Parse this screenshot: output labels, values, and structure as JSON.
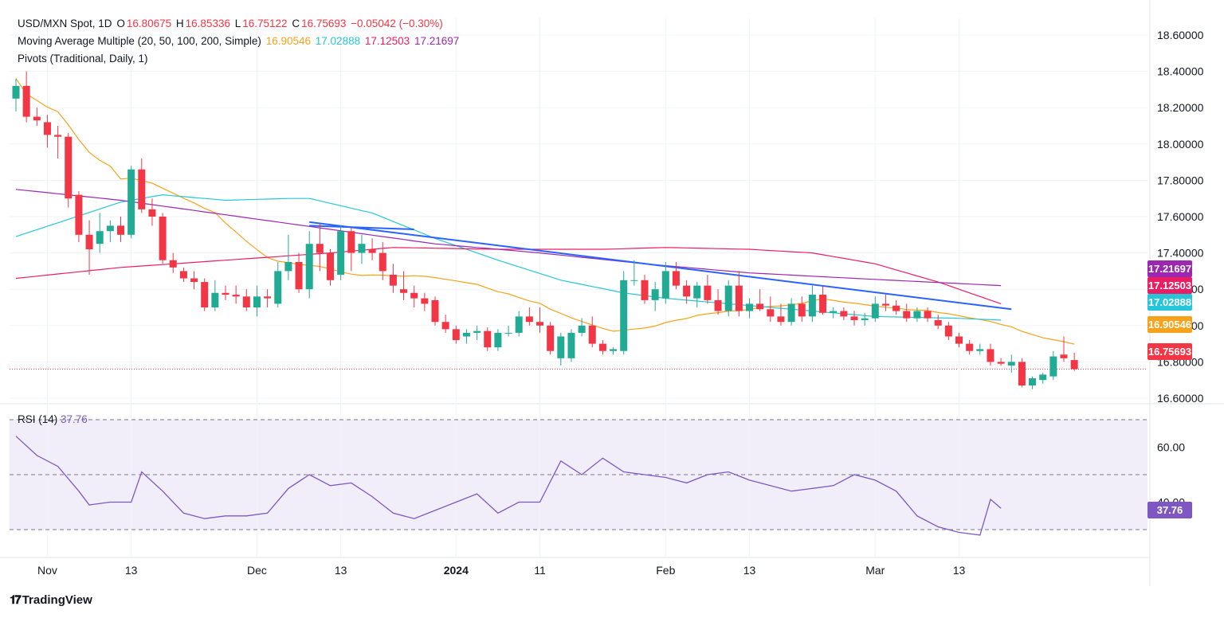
{
  "header": {
    "symbol": "USD/MXN Spot, 1D",
    "open_label": "O",
    "open": "16.80675",
    "high_label": "H",
    "high": "16.85336",
    "low_label": "L",
    "low": "16.75122",
    "close_label": "C",
    "close": "16.75693",
    "change": "−0.05042 (−0.30%)",
    "ma_label": "Moving Average Multiple (20, 50, 100, 200, Simple)",
    "ma20": "16.90546",
    "ma50": "17.02888",
    "ma100": "17.12503",
    "ma200": "17.21697",
    "pivots_label": "Pivots (Traditional, Daily, 1)"
  },
  "rsi": {
    "label": "RSI (14)",
    "value": "37.76"
  },
  "price_tags": {
    "ma200": "17.21697",
    "ma100": "17.12503",
    "ma50": "17.02888",
    "ma20": "16.90546",
    "last": "16.75693"
  },
  "brand": {
    "name": "TradingView"
  },
  "colors": {
    "up": "#22ab94",
    "down": "#f23645",
    "ma20": "#f7a21b",
    "ma50": "#26c6da",
    "ma100": "#e91e63",
    "ma200": "#9c27b0",
    "trendline": "#2962ff",
    "rsi": "#7e57c2"
  },
  "chart_data": [
    {
      "type": "candlestick",
      "title": "USD/MXN Spot, 1D",
      "y_ticks": [
        "16.60000",
        "16.80000",
        "17.00000",
        "17.20000",
        "17.40000",
        "17.60000",
        "17.80000",
        "18.00000",
        "18.20000",
        "18.40000",
        "18.60000"
      ],
      "x_labels": [
        {
          "label": "Nov",
          "index": 3
        },
        {
          "label": "13",
          "index": 11
        },
        {
          "label": "Dec",
          "index": 23
        },
        {
          "label": "13",
          "index": 31
        },
        {
          "label": "2024",
          "index": 42
        },
        {
          "label": "11",
          "index": 50
        },
        {
          "label": "Feb",
          "index": 62
        },
        {
          "label": "13",
          "index": 70
        },
        {
          "label": "Mar",
          "index": 82
        },
        {
          "label": "13",
          "index": 90
        }
      ],
      "ylim": [
        16.49,
        18.64
      ],
      "candles": [
        [
          18.25,
          18.36,
          18.18,
          18.32
        ],
        [
          18.32,
          18.4,
          18.12,
          18.15
        ],
        [
          18.15,
          18.2,
          18.1,
          18.13
        ],
        [
          18.12,
          18.16,
          17.98,
          18.05
        ],
        [
          18.05,
          18.1,
          17.92,
          18.04
        ],
        [
          18.04,
          18.06,
          17.65,
          17.7
        ],
        [
          17.72,
          17.74,
          17.46,
          17.5
        ],
        [
          17.5,
          17.58,
          17.28,
          17.42
        ],
        [
          17.45,
          17.62,
          17.4,
          17.52
        ],
        [
          17.52,
          17.58,
          17.46,
          17.55
        ],
        [
          17.55,
          17.6,
          17.46,
          17.5
        ],
        [
          17.5,
          17.88,
          17.48,
          17.86
        ],
        [
          17.86,
          17.92,
          17.62,
          17.64
        ],
        [
          17.64,
          17.7,
          17.55,
          17.6
        ],
        [
          17.6,
          17.62,
          17.34,
          17.36
        ],
        [
          17.36,
          17.4,
          17.29,
          17.32
        ],
        [
          17.3,
          17.32,
          17.24,
          17.26
        ],
        [
          17.26,
          17.3,
          17.2,
          17.24
        ],
        [
          17.24,
          17.26,
          17.08,
          17.1
        ],
        [
          17.1,
          17.25,
          17.08,
          17.18
        ],
        [
          17.18,
          17.22,
          17.14,
          17.17
        ],
        [
          17.17,
          17.22,
          17.12,
          17.16
        ],
        [
          17.16,
          17.2,
          17.08,
          17.1
        ],
        [
          17.1,
          17.22,
          17.05,
          17.16
        ],
        [
          17.16,
          17.2,
          17.1,
          17.15
        ],
        [
          17.12,
          17.35,
          17.1,
          17.3
        ],
        [
          17.3,
          17.5,
          17.25,
          17.35
        ],
        [
          17.35,
          17.4,
          17.18,
          17.2
        ],
        [
          17.2,
          17.52,
          17.15,
          17.45
        ],
        [
          17.45,
          17.56,
          17.3,
          17.4
        ],
        [
          17.4,
          17.42,
          17.22,
          17.25
        ],
        [
          17.28,
          17.55,
          17.25,
          17.52
        ],
        [
          17.52,
          17.54,
          17.3,
          17.4
        ],
        [
          17.4,
          17.5,
          17.34,
          17.45
        ],
        [
          17.42,
          17.48,
          17.36,
          17.4
        ],
        [
          17.4,
          17.46,
          17.25,
          17.3
        ],
        [
          17.28,
          17.34,
          17.18,
          17.22
        ],
        [
          17.2,
          17.3,
          17.14,
          17.18
        ],
        [
          17.18,
          17.22,
          17.1,
          17.15
        ],
        [
          17.15,
          17.18,
          17.08,
          17.12
        ],
        [
          17.14,
          17.16,
          17.0,
          17.02
        ],
        [
          17.02,
          17.06,
          16.96,
          16.98
        ],
        [
          16.98,
          17.0,
          16.9,
          16.92
        ],
        [
          16.94,
          16.98,
          16.9,
          16.96
        ],
        [
          16.96,
          17.0,
          16.92,
          16.97
        ],
        [
          16.97,
          16.99,
          16.86,
          16.88
        ],
        [
          16.88,
          16.98,
          16.86,
          16.96
        ],
        [
          16.96,
          17.0,
          16.94,
          16.96
        ],
        [
          16.96,
          17.08,
          16.94,
          17.05
        ],
        [
          17.05,
          17.1,
          17.0,
          17.02
        ],
        [
          17.02,
          17.1,
          16.96,
          17.0
        ],
        [
          17.0,
          17.02,
          16.84,
          16.86
        ],
        [
          16.82,
          16.96,
          16.78,
          16.94
        ],
        [
          16.82,
          16.98,
          16.8,
          16.96
        ],
        [
          16.96,
          17.04,
          16.94,
          17.0
        ],
        [
          17.0,
          17.05,
          16.88,
          16.9
        ],
        [
          16.9,
          16.92,
          16.84,
          16.86
        ],
        [
          16.86,
          16.88,
          16.84,
          16.87
        ],
        [
          16.86,
          17.3,
          16.84,
          17.25
        ],
        [
          17.25,
          17.36,
          17.22,
          17.25
        ],
        [
          17.25,
          17.28,
          17.12,
          17.14
        ],
        [
          17.14,
          17.24,
          17.08,
          17.2
        ],
        [
          17.15,
          17.35,
          17.12,
          17.3
        ],
        [
          17.3,
          17.35,
          17.2,
          17.22
        ],
        [
          17.22,
          17.25,
          17.12,
          17.16
        ],
        [
          17.15,
          17.24,
          17.1,
          17.22
        ],
        [
          17.22,
          17.28,
          17.12,
          17.14
        ],
        [
          17.14,
          17.2,
          17.06,
          17.08
        ],
        [
          17.08,
          17.25,
          17.05,
          17.22
        ],
        [
          17.22,
          17.3,
          17.05,
          17.08
        ],
        [
          17.08,
          17.15,
          17.04,
          17.12
        ],
        [
          17.12,
          17.2,
          17.08,
          17.09
        ],
        [
          17.09,
          17.16,
          17.02,
          17.05
        ],
        [
          17.05,
          17.12,
          17.0,
          17.02
        ],
        [
          17.02,
          17.15,
          17.0,
          17.12
        ],
        [
          17.12,
          17.16,
          17.02,
          17.05
        ],
        [
          17.05,
          17.22,
          17.02,
          17.17
        ],
        [
          17.17,
          17.22,
          17.06,
          17.07
        ],
        [
          17.07,
          17.1,
          17.04,
          17.08
        ],
        [
          17.08,
          17.1,
          17.03,
          17.05
        ],
        [
          17.05,
          17.08,
          17.0,
          17.03
        ],
        [
          17.03,
          17.07,
          17.0,
          17.04
        ],
        [
          17.04,
          17.16,
          17.02,
          17.12
        ],
        [
          17.12,
          17.17,
          17.08,
          17.11
        ],
        [
          17.11,
          17.14,
          17.06,
          17.08
        ],
        [
          17.08,
          17.12,
          17.02,
          17.04
        ],
        [
          17.04,
          17.1,
          17.02,
          17.08
        ],
        [
          17.08,
          17.1,
          17.02,
          17.04
        ],
        [
          17.03,
          17.06,
          16.98,
          17.0
        ],
        [
          17.0,
          17.02,
          16.92,
          16.94
        ],
        [
          16.94,
          16.96,
          16.88,
          16.9
        ],
        [
          16.9,
          16.92,
          16.84,
          16.86
        ],
        [
          16.86,
          16.9,
          16.84,
          16.87
        ],
        [
          16.87,
          16.9,
          16.78,
          16.8
        ],
        [
          16.8,
          16.82,
          16.78,
          16.79
        ],
        [
          16.78,
          16.84,
          16.74,
          16.8
        ],
        [
          16.8,
          16.82,
          16.66,
          16.67
        ],
        [
          16.67,
          16.72,
          16.65,
          16.71
        ],
        [
          16.7,
          16.74,
          16.68,
          16.73
        ],
        [
          16.72,
          16.86,
          16.7,
          16.83
        ],
        [
          16.84,
          16.94,
          16.8,
          16.82
        ],
        [
          16.81,
          16.85,
          16.75,
          16.76
        ]
      ]
    },
    {
      "type": "line",
      "title": "RSI (14)",
      "y_ticks": [
        "60.00",
        "40.00"
      ],
      "ylim": [
        23,
        73
      ],
      "reference_lines": [
        70,
        50,
        30
      ],
      "x": [
        0,
        2,
        4,
        6,
        7,
        9,
        11,
        12,
        14,
        16,
        18,
        20,
        22,
        24,
        26,
        28,
        30,
        32,
        34,
        36,
        38,
        40,
        42,
        44,
        46,
        48,
        50,
        52,
        54,
        56,
        58,
        60,
        62,
        64,
        66,
        68,
        70,
        72,
        74,
        76,
        78,
        80,
        82,
        84,
        86,
        88,
        90,
        92,
        93,
        94
      ],
      "values": [
        64,
        57,
        53,
        44,
        39,
        40,
        40,
        51,
        44,
        36,
        34,
        35,
        35,
        36,
        45,
        50,
        46,
        47,
        42,
        36,
        34,
        37,
        40,
        43,
        36,
        40,
        40,
        55,
        50,
        56,
        51,
        50,
        49,
        47,
        50,
        51,
        48,
        46,
        44,
        45,
        46,
        50,
        48,
        44,
        35,
        31,
        29,
        28,
        41,
        37.76
      ]
    }
  ]
}
